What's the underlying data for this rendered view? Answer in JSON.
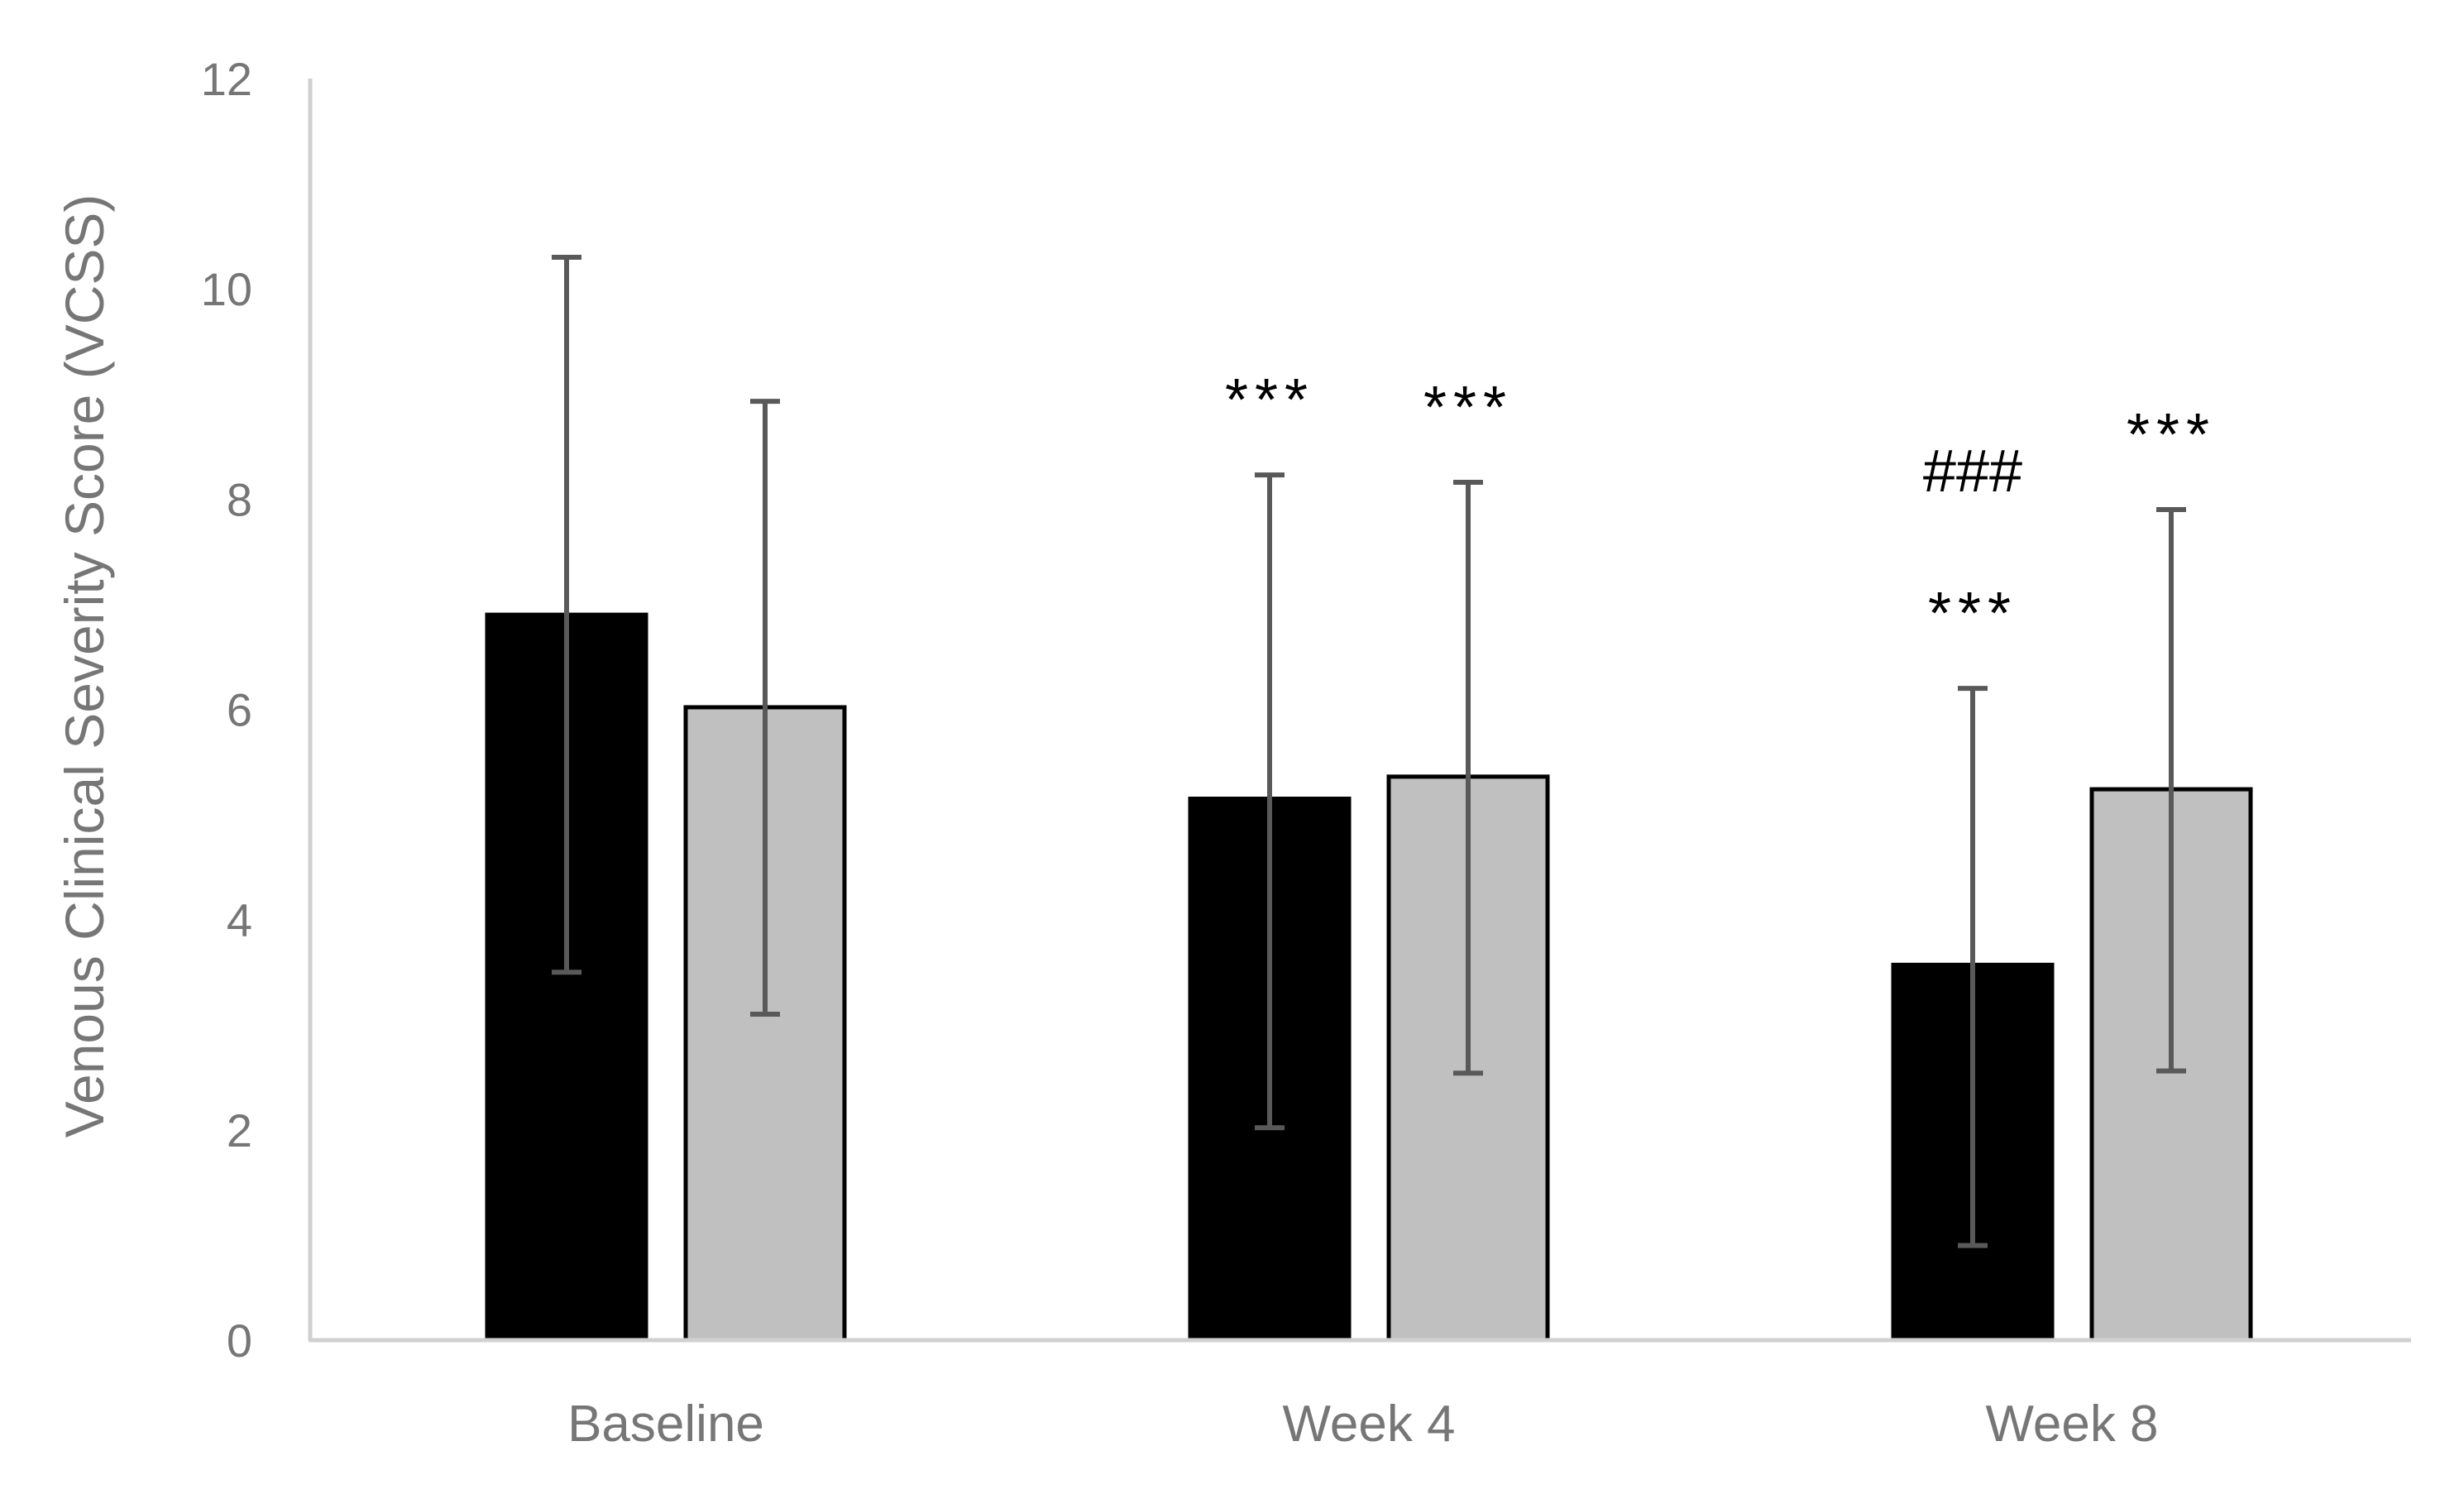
{
  "chart_data": {
    "type": "bar",
    "title": "",
    "xlabel": "",
    "ylabel": "Venous Clinical Severity Score (VCSS)",
    "ylim": [
      0,
      12
    ],
    "yticks": [
      0,
      2,
      4,
      6,
      8,
      10,
      12
    ],
    "grid": false,
    "legend": "none",
    "categories": [
      "Baseline",
      "Week 4",
      "Week 8"
    ],
    "series": [
      {
        "color": "#000000",
        "values": [
          6.9,
          5.15,
          3.57
        ],
        "error_low": [
          3.5,
          2.02,
          0.9
        ],
        "error_high": [
          10.3,
          8.23,
          6.2
        ],
        "annotations": [
          [],
          [
            "***"
          ],
          [
            "***",
            "###"
          ]
        ]
      },
      {
        "color": "#c0c0c0",
        "values": [
          6.02,
          5.36,
          5.24
        ],
        "error_low": [
          3.1,
          2.54,
          2.56
        ],
        "error_high": [
          8.93,
          8.16,
          7.9
        ],
        "annotations": [
          [],
          [
            "***"
          ],
          [
            "***"
          ]
        ]
      }
    ],
    "colors": {
      "axis": "#d0d0d0",
      "text": "#767676",
      "errorbar": "#595959",
      "bar_outline": "#000000"
    }
  }
}
